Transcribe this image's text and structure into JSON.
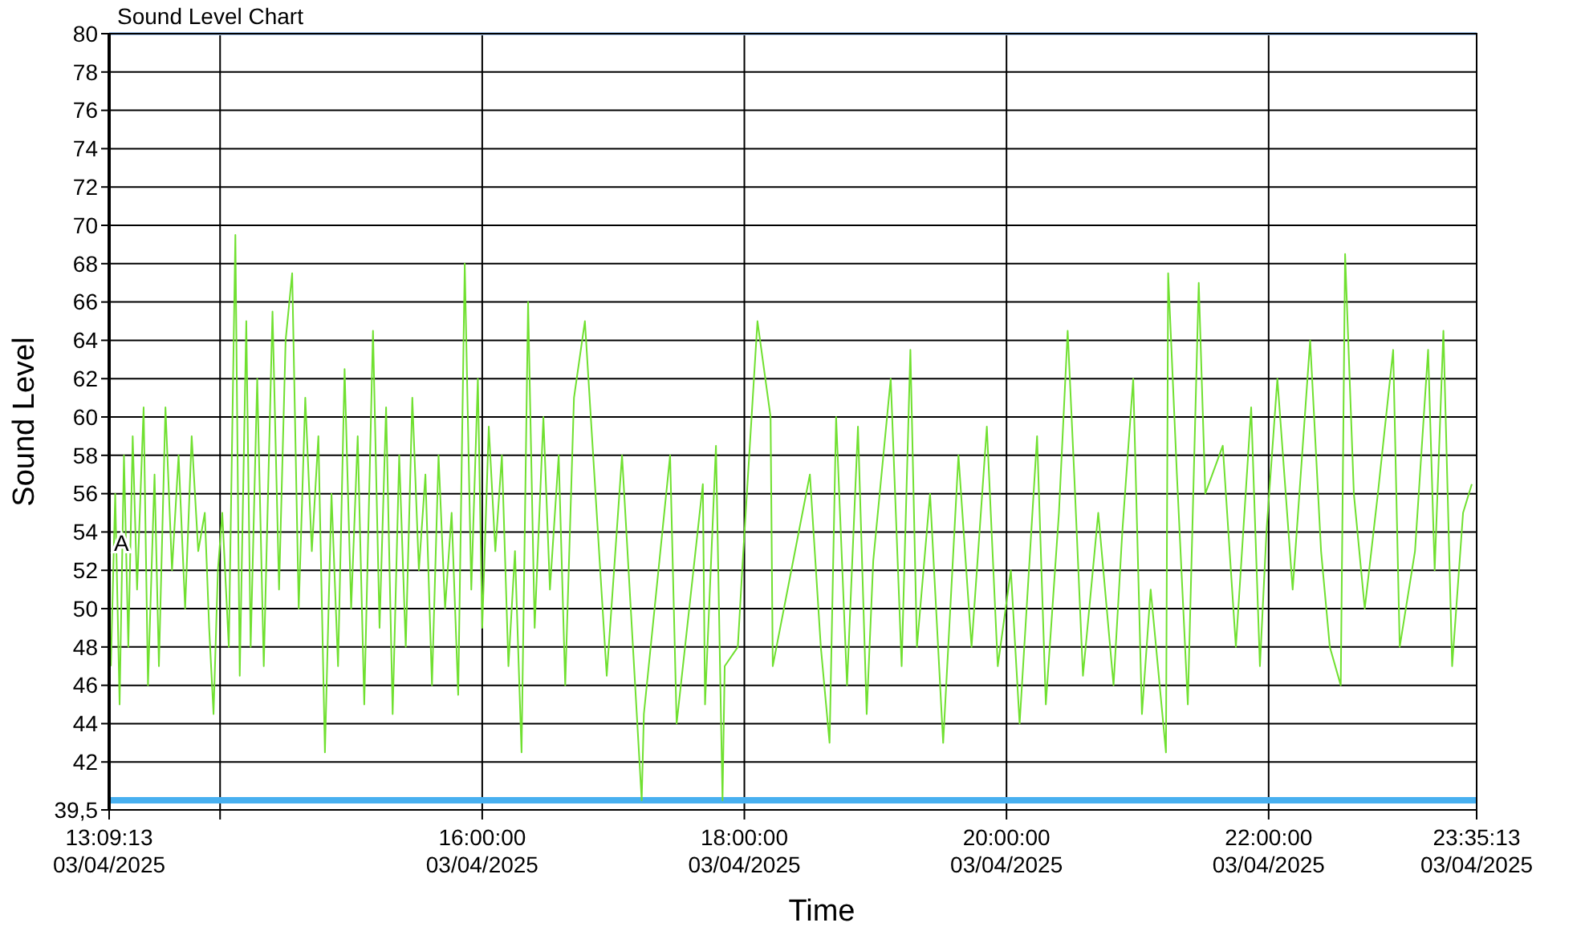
{
  "chart_data": {
    "type": "line",
    "title": "Sound Level Chart",
    "xlabel": "Time",
    "ylabel": "Sound Level",
    "xlim": [
      "2025-04-03T13:09:13",
      "2025-04-03T23:35:13"
    ],
    "xticks": [
      {
        "value": "2025-04-03T13:09:13",
        "label": "13:09:13\n03/04/2025"
      },
      {
        "value": "2025-04-03T14:00",
        "label": null
      },
      {
        "value": "2025-04-03T16:00",
        "label": "16:00:00\n03/04/2025"
      },
      {
        "value": "2025-04-03T18:00",
        "label": "18:00:00\n03/04/2025"
      },
      {
        "value": "2025-04-03T20:00",
        "label": "20:00:00\n03/04/2025"
      },
      {
        "value": "2025-04-03T22:00",
        "label": "22:00:00\n03/04/2025"
      },
      {
        "value": "2025-04-03T23:35:13",
        "label": "23:35:13\n03/04/2025"
      }
    ],
    "ylim": [
      39.5,
      80
    ],
    "yticks": [
      {
        "value": 39.5,
        "label": "39,5"
      },
      42,
      44,
      46,
      48,
      50,
      52,
      54,
      56,
      58,
      60,
      62,
      64,
      66,
      68,
      70,
      72,
      74,
      76,
      78,
      80
    ],
    "grid": true,
    "marker": "none",
    "line_style": "solid",
    "ref_lines": [
      {
        "axis": "y",
        "value": 80,
        "color": "#a8c8f0"
      },
      {
        "axis": "y",
        "value": 40,
        "color": "#48b0f0"
      }
    ],
    "annotations": [
      {
        "text": "A",
        "x": "2025-04-03T13:09:13",
        "y": 53
      }
    ],
    "series": [
      {
        "color": "#70e030",
        "x": [
          "2025-04-03T13:10",
          "2025-04-03T13:12",
          "2025-04-03T13:14",
          "2025-04-03T13:16",
          "2025-04-03T13:18",
          "2025-04-03T13:20",
          "2025-04-03T13:22",
          "2025-04-03T13:25",
          "2025-04-03T13:27",
          "2025-04-03T13:30",
          "2025-04-03T13:32",
          "2025-04-03T13:35",
          "2025-04-03T13:38",
          "2025-04-03T13:41",
          "2025-04-03T13:44",
          "2025-04-03T13:47",
          "2025-04-03T13:50",
          "2025-04-03T13:53",
          "2025-04-03T13:55",
          "2025-04-03T13:57",
          "2025-04-03T13:59",
          "2025-04-03T14:01",
          "2025-04-03T14:04",
          "2025-04-03T14:07",
          "2025-04-03T14:09",
          "2025-04-03T14:12",
          "2025-04-03T14:14",
          "2025-04-03T14:17",
          "2025-04-03T14:20",
          "2025-04-03T14:24",
          "2025-04-03T14:27",
          "2025-04-03T14:30",
          "2025-04-03T14:33",
          "2025-04-03T14:36",
          "2025-04-03T14:39",
          "2025-04-03T14:42",
          "2025-04-03T14:45",
          "2025-04-03T14:48",
          "2025-04-03T14:51",
          "2025-04-03T14:54",
          "2025-04-03T14:57",
          "2025-04-03T15:00",
          "2025-04-03T15:03",
          "2025-04-03T15:06",
          "2025-04-03T15:10",
          "2025-04-03T15:13",
          "2025-04-03T15:16",
          "2025-04-03T15:19",
          "2025-04-03T15:22",
          "2025-04-03T15:25",
          "2025-04-03T15:28",
          "2025-04-03T15:31",
          "2025-04-03T15:34",
          "2025-04-03T15:37",
          "2025-04-03T15:40",
          "2025-04-03T15:43",
          "2025-04-03T15:46",
          "2025-04-03T15:49",
          "2025-04-03T15:52",
          "2025-04-03T15:55",
          "2025-04-03T15:58",
          "2025-04-03T16:00",
          "2025-04-03T16:03",
          "2025-04-03T16:06",
          "2025-04-03T16:09",
          "2025-04-03T16:12",
          "2025-04-03T16:15",
          "2025-04-03T16:18",
          "2025-04-03T16:21",
          "2025-04-03T16:24",
          "2025-04-03T16:28",
          "2025-04-03T16:31",
          "2025-04-03T16:35",
          "2025-04-03T16:38",
          "2025-04-03T16:42",
          "2025-04-03T16:47",
          "2025-04-03T16:57",
          "2025-04-03T17:04",
          "2025-04-03T17:13",
          "2025-04-03T17:14",
          "2025-04-03T17:26",
          "2025-04-03T17:29",
          "2025-04-03T17:41",
          "2025-04-03T17:42",
          "2025-04-03T17:47",
          "2025-04-03T17:50",
          "2025-04-03T17:51",
          "2025-04-03T17:57",
          "2025-04-03T17:59",
          "2025-04-03T18:06",
          "2025-04-03T18:12",
          "2025-04-03T18:13",
          "2025-04-03T18:30",
          "2025-04-03T18:35",
          "2025-04-03T18:39",
          "2025-04-03T18:42",
          "2025-04-03T18:47",
          "2025-04-03T18:52",
          "2025-04-03T18:56",
          "2025-04-03T18:59",
          "2025-04-03T19:07",
          "2025-04-03T19:12",
          "2025-04-03T19:16",
          "2025-04-03T19:19",
          "2025-04-03T19:25",
          "2025-04-03T19:31",
          "2025-04-03T19:38",
          "2025-04-03T19:44",
          "2025-04-03T19:51",
          "2025-04-03T19:56",
          "2025-04-03T20:02",
          "2025-04-03T20:06",
          "2025-04-03T20:14",
          "2025-04-03T20:18",
          "2025-04-03T20:24",
          "2025-04-03T20:28",
          "2025-04-03T20:31",
          "2025-04-03T20:35",
          "2025-04-03T20:42",
          "2025-04-03T20:49",
          "2025-04-03T20:53",
          "2025-04-03T20:58",
          "2025-04-03T21:02",
          "2025-04-03T21:06",
          "2025-04-03T21:13",
          "2025-04-03T21:14",
          "2025-04-03T21:18",
          "2025-04-03T21:23",
          "2025-04-03T21:28",
          "2025-04-03T21:31",
          "2025-04-03T21:39",
          "2025-04-03T21:45",
          "2025-04-03T21:52",
          "2025-04-03T21:56",
          "2025-04-03T21:59",
          "2025-04-03T22:04",
          "2025-04-03T22:11",
          "2025-04-03T22:19",
          "2025-04-03T22:24",
          "2025-04-03T22:28",
          "2025-04-03T22:33",
          "2025-04-03T22:35",
          "2025-04-03T22:39",
          "2025-04-03T22:44",
          "2025-04-03T22:50",
          "2025-04-03T22:57",
          "2025-04-03T23:00",
          "2025-04-03T23:07",
          "2025-04-03T23:13",
          "2025-04-03T23:16",
          "2025-04-03T23:20",
          "2025-04-03T23:24",
          "2025-04-03T23:29",
          "2025-04-03T23:33"
        ],
        "values": [
          47,
          56,
          45,
          58,
          48,
          59,
          51,
          60.5,
          46,
          57,
          47,
          60.5,
          52,
          58,
          50,
          59,
          53,
          55,
          49,
          44.5,
          52,
          55,
          48,
          69.5,
          46.5,
          65,
          48,
          62,
          47,
          65.5,
          51,
          64,
          67.5,
          50,
          61,
          53,
          59,
          42.5,
          56,
          47,
          62.5,
          50,
          59,
          45,
          64.5,
          49,
          60.5,
          44.5,
          58,
          48,
          61,
          52,
          57,
          46,
          58,
          50,
          55,
          45.5,
          68,
          51,
          62,
          49,
          59.5,
          53,
          58,
          47,
          53,
          42.5,
          66,
          49,
          60,
          51,
          58,
          46,
          61,
          65,
          46.5,
          58,
          40,
          44.5,
          58,
          44,
          56.5,
          45,
          58.5,
          40,
          47,
          48,
          52,
          65,
          60,
          47,
          57,
          48,
          43,
          60,
          46,
          59.5,
          44.5,
          52.5,
          62,
          47,
          63.5,
          48,
          56,
          43,
          58,
          48,
          59.5,
          47,
          52,
          44,
          59,
          45,
          55,
          64.5,
          57,
          46.5,
          55,
          46,
          54,
          62,
          44.5,
          51,
          42.5,
          67.5,
          57,
          45,
          67,
          56,
          58.5,
          48,
          60.5,
          47,
          54,
          62,
          51,
          64,
          53,
          48,
          46,
          68.5,
          56,
          50,
          56,
          63.5,
          48,
          53,
          63.5,
          52,
          64.5,
          47,
          55,
          56.5
        ]
      }
    ]
  }
}
